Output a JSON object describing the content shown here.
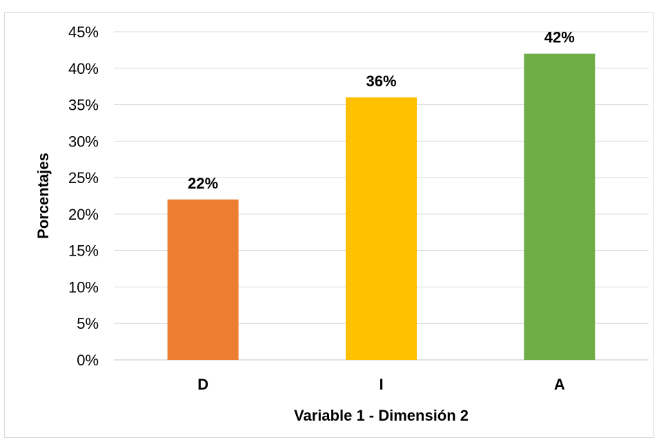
{
  "chart_data": {
    "type": "bar",
    "title": "",
    "categories": [
      "D",
      "I",
      "A"
    ],
    "values": [
      22,
      36,
      42
    ],
    "data_labels": [
      "22%",
      "36%",
      "42%"
    ],
    "colors": [
      "#ED7D31",
      "#FFC000",
      "#70AD47"
    ],
    "xlabel": "Variable 1 - Dimensión 2",
    "ylabel": "Porcentajes",
    "ylim": [
      0,
      45
    ],
    "yticks": [
      0,
      5,
      10,
      15,
      20,
      25,
      30,
      35,
      40,
      45
    ],
    "ytick_labels": [
      "0%",
      "5%",
      "10%",
      "15%",
      "20%",
      "25%",
      "30%",
      "35%",
      "40%",
      "45%"
    ],
    "grid": true,
    "legend": false
  }
}
